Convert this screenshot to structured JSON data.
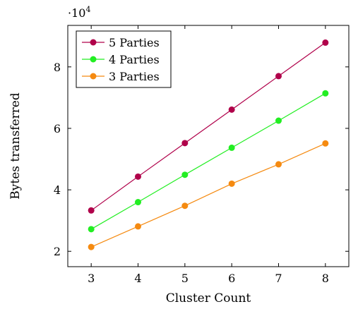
{
  "chart_data": {
    "type": "line",
    "title": "",
    "xlabel": "Cluster Count",
    "ylabel": "Bytes transferred",
    "y_multiplier_label": {
      "base": "·10",
      "exponent": "4"
    },
    "x": [
      3,
      4,
      5,
      6,
      7,
      8
    ],
    "x_ticks": [
      "3",
      "4",
      "5",
      "6",
      "7",
      "8"
    ],
    "y_ticks": [
      "2",
      "4",
      "6",
      "8"
    ],
    "y_tick_values": [
      2,
      4,
      6,
      8
    ],
    "xlim": [
      2.5,
      8.5
    ],
    "ylim": [
      1.5,
      9.35
    ],
    "grid": false,
    "legend_position": "top-left",
    "series": [
      {
        "name": "5 Parties",
        "color": "#b0004a",
        "values": [
          3.33,
          4.43,
          5.52,
          6.61,
          7.7,
          8.79
        ]
      },
      {
        "name": "4 Parties",
        "color": "#22ee22",
        "values": [
          2.72,
          3.6,
          4.49,
          5.37,
          6.25,
          7.14
        ]
      },
      {
        "name": "3 Parties",
        "color": "#f58a10",
        "values": [
          2.14,
          2.81,
          3.48,
          4.2,
          4.83,
          5.51
        ]
      }
    ]
  }
}
